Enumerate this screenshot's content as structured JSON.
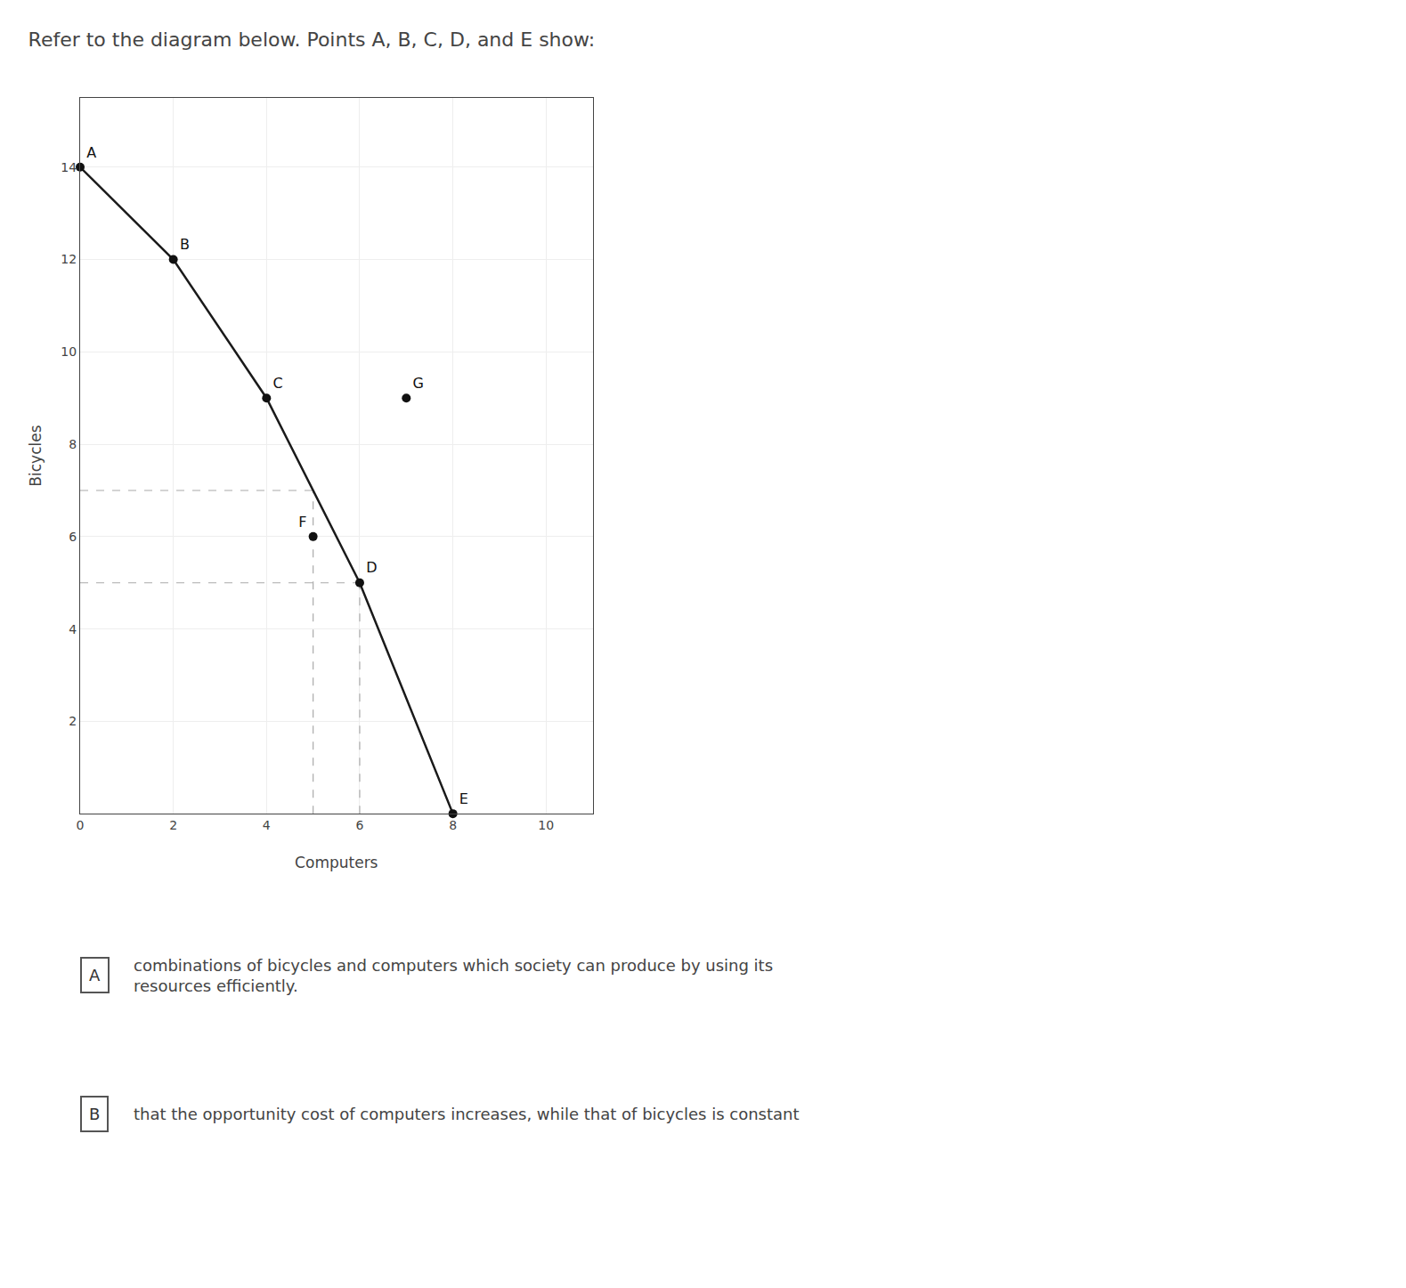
{
  "chart_data": {
    "type": "line",
    "title": "Refer to the diagram below. Points A, B, C, D, and E show:",
    "x_label": "Computers",
    "y_label": "Bicycles",
    "xlim": [
      0,
      11
    ],
    "ylim": [
      0,
      15.5
    ],
    "xticks": [
      0,
      2,
      4,
      6,
      8,
      10
    ],
    "yticks": [
      2,
      4,
      6,
      8,
      10,
      12,
      14
    ],
    "grid": true,
    "series": [
      {
        "type": "line",
        "line_style": "dashed",
        "color": "#aaaaaa",
        "x": [
          0,
          5
        ],
        "values": [
          7,
          7
        ]
      },
      {
        "type": "line",
        "line_style": "dashed",
        "color": "#aaaaaa",
        "x": [
          5,
          5
        ],
        "values": [
          0,
          7
        ]
      },
      {
        "type": "line",
        "line_style": "dashed",
        "color": "#aaaaaa",
        "x": [
          0,
          6
        ],
        "values": [
          5,
          5
        ]
      },
      {
        "type": "line",
        "line_style": "dashed",
        "color": "#aaaaaa",
        "x": [
          6,
          6
        ],
        "values": [
          0,
          5
        ]
      },
      {
        "type": "line",
        "line_style": "solid",
        "color": "#1a1a1a",
        "x": [
          0,
          2,
          4,
          6,
          8
        ],
        "values": [
          14,
          12,
          9,
          5,
          0
        ]
      },
      {
        "type": "scatter",
        "color": "#111111",
        "x": [
          0,
          2,
          4,
          6,
          8,
          5,
          7
        ],
        "values": [
          14,
          12,
          9,
          5,
          0,
          6,
          9
        ],
        "point_labels": [
          "A",
          "B",
          "C",
          "D",
          "E",
          "F",
          "G"
        ]
      }
    ],
    "annotations": [
      {
        "label": "A",
        "text": "combinations of bicycles and computers which society can produce by using its\nresources efficiently."
      },
      {
        "label": "B",
        "text": "that the opportunity cost of computers increases, while that of bicycles is constant"
      }
    ]
  }
}
